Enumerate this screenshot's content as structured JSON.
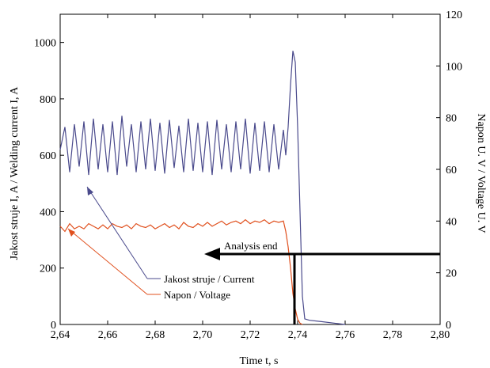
{
  "chart_data": {
    "type": "line",
    "xlabel": "Time t, s",
    "ylabel_left": "Jakost struje I, A / Welding current I, A",
    "ylabel_right": "Napon U. V / Voltage U. V",
    "xlim": [
      2.64,
      2.8
    ],
    "ylim_left": [
      0,
      1100
    ],
    "ylim_right": [
      0,
      120
    ],
    "x_ticks": [
      "2,64",
      "2,66",
      "2,68",
      "2,70",
      "2,72",
      "2,74",
      "2,76",
      "2,78",
      "2,80"
    ],
    "y_left_ticks": [
      "0",
      "200",
      "400",
      "600",
      "800",
      "1000"
    ],
    "y_right_ticks": [
      "0",
      "20",
      "40",
      "60",
      "80",
      "100",
      "120"
    ],
    "grid": false,
    "series": [
      {
        "name": "Jakost struje / Current",
        "axis": "left",
        "color": "#4a4a8c",
        "x": [
          2.64,
          2.642,
          2.644,
          2.646,
          2.648,
          2.65,
          2.652,
          2.654,
          2.656,
          2.658,
          2.66,
          2.662,
          2.664,
          2.666,
          2.668,
          2.67,
          2.672,
          2.674,
          2.676,
          2.678,
          2.68,
          2.682,
          2.684,
          2.686,
          2.688,
          2.69,
          2.692,
          2.694,
          2.696,
          2.698,
          2.7,
          2.702,
          2.704,
          2.706,
          2.708,
          2.71,
          2.712,
          2.714,
          2.716,
          2.718,
          2.72,
          2.722,
          2.724,
          2.726,
          2.728,
          2.73,
          2.732,
          2.734,
          2.735,
          2.736,
          2.737,
          2.738,
          2.739,
          2.74,
          2.741,
          2.742,
          2.743,
          2.745,
          2.75,
          2.755,
          2.76
        ],
        "y": [
          620,
          700,
          540,
          710,
          560,
          720,
          530,
          730,
          550,
          710,
          540,
          720,
          530,
          740,
          560,
          710,
          540,
          720,
          550,
          730,
          545,
          715,
          535,
          725,
          555,
          705,
          540,
          730,
          545,
          715,
          540,
          720,
          530,
          725,
          550,
          710,
          540,
          720,
          550,
          730,
          535,
          715,
          545,
          720,
          540,
          710,
          550,
          690,
          600,
          700,
          850,
          970,
          930,
          700,
          400,
          100,
          20,
          15,
          10,
          5,
          0
        ]
      },
      {
        "name": "Napon / Voltage",
        "axis": "right",
        "color": "#e0501e",
        "x": [
          2.64,
          2.642,
          2.644,
          2.646,
          2.648,
          2.65,
          2.652,
          2.654,
          2.656,
          2.658,
          2.66,
          2.662,
          2.664,
          2.666,
          2.668,
          2.67,
          2.672,
          2.674,
          2.676,
          2.678,
          2.68,
          2.682,
          2.684,
          2.686,
          2.688,
          2.69,
          2.692,
          2.694,
          2.696,
          2.698,
          2.7,
          2.702,
          2.704,
          2.706,
          2.708,
          2.71,
          2.712,
          2.714,
          2.716,
          2.718,
          2.72,
          2.722,
          2.724,
          2.726,
          2.728,
          2.73,
          2.732,
          2.734,
          2.735,
          2.736,
          2.737,
          2.738,
          2.739,
          2.74,
          2.741,
          2.742
        ],
        "y": [
          38,
          36,
          39,
          37,
          38,
          37,
          39,
          38,
          37,
          38.5,
          37,
          39,
          38,
          37.5,
          38.5,
          37,
          39,
          38,
          37.5,
          38.5,
          37,
          38,
          39,
          37.5,
          38.5,
          37,
          39.5,
          38,
          37.5,
          39,
          38,
          39.5,
          38,
          39,
          40,
          38.5,
          39.5,
          40,
          39,
          40.5,
          39,
          40,
          39.5,
          40.5,
          39,
          40,
          39.5,
          40,
          36,
          30,
          22,
          12,
          6,
          2,
          0.5,
          0
        ]
      }
    ],
    "annotations": [
      {
        "text": "Analysis end"
      }
    ]
  }
}
